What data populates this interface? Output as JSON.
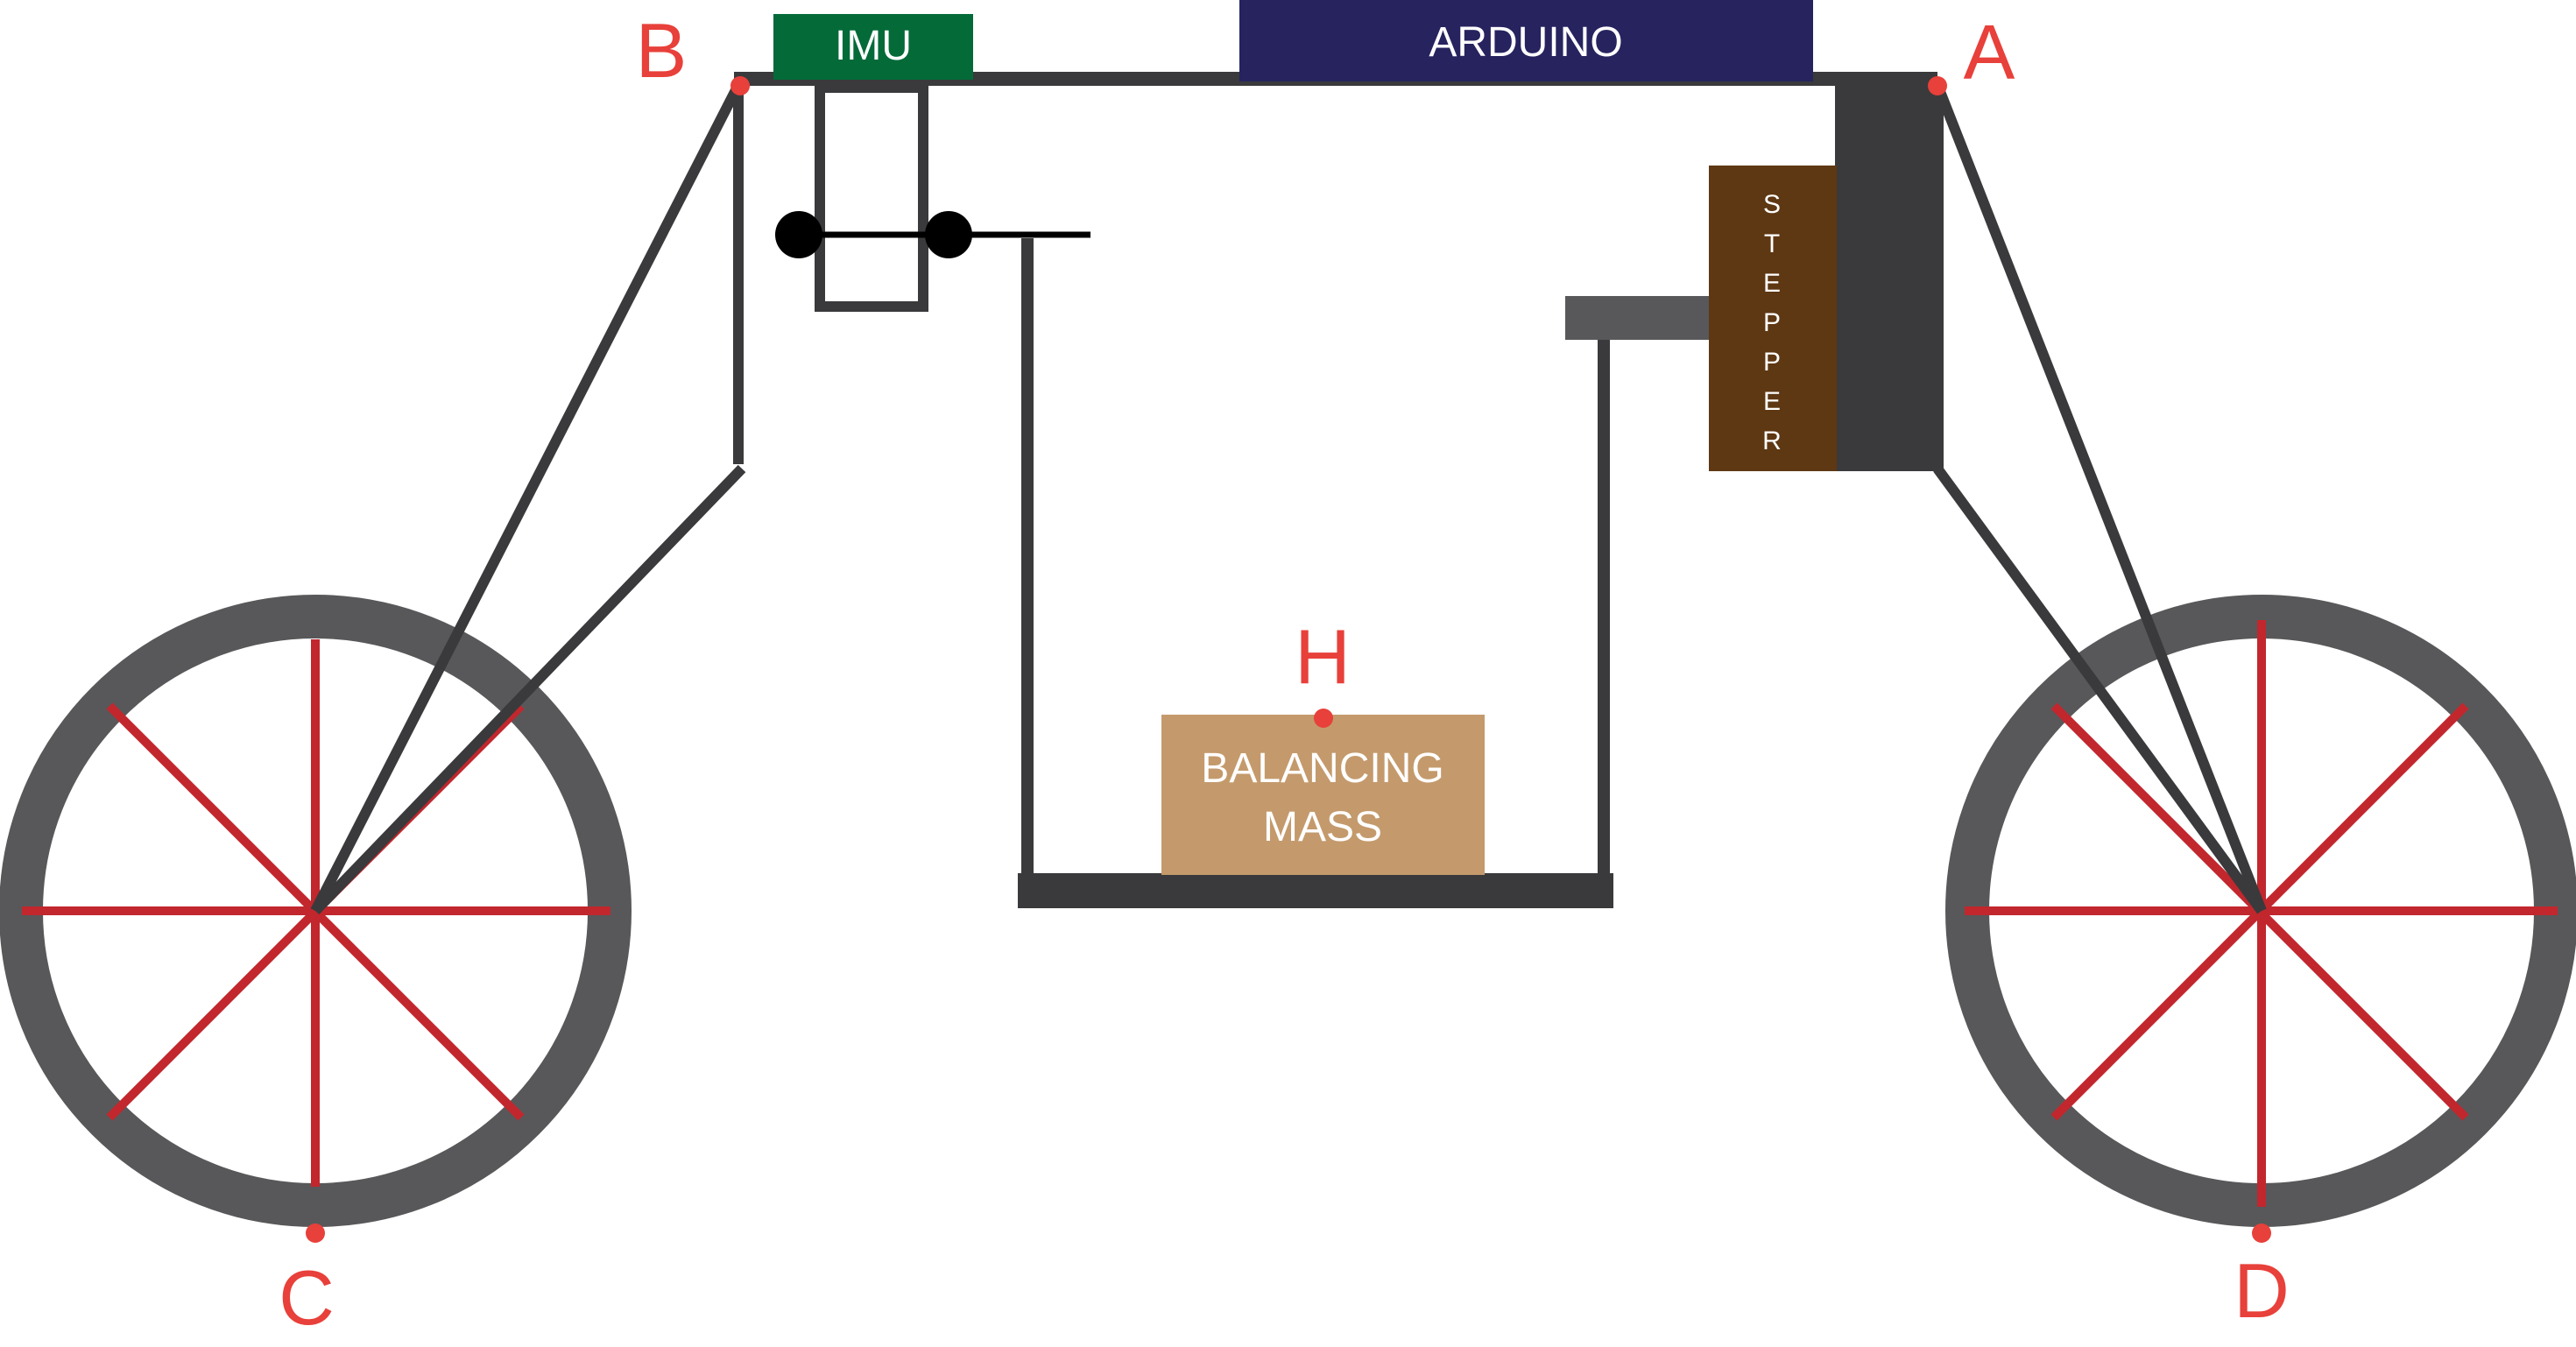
{
  "colors": {
    "frame": "#3a3a3c",
    "wheel_tire": "#58585a",
    "spoke": "#c1272d",
    "point": "#e8403a",
    "imu": "#046a38",
    "arduino": "#26235f",
    "stepper": "#5e3713",
    "balancing_mass": "#c49a6c",
    "stepper_shaft": "#58585a",
    "pivot": "#000000"
  },
  "labels": {
    "imu": "IMU",
    "arduino": "ARDUINO",
    "stepper_letters": [
      "S",
      "T",
      "E",
      "P",
      "P",
      "E",
      "R"
    ],
    "mass_line1": "BALANCING",
    "mass_line2": "MASS"
  },
  "points": {
    "a": "A",
    "b": "B",
    "c": "C",
    "d": "D",
    "h": "H"
  }
}
